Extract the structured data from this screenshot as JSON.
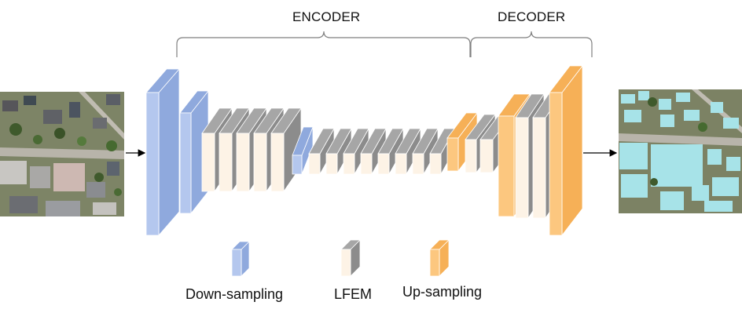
{
  "encoder_label": "ENCODER",
  "decoder_label": "DECODER",
  "legend": {
    "down": "Down-sampling",
    "lfem": "LFEM",
    "up": "Up-sampling"
  },
  "colors": {
    "down_front": "#b4c7ee",
    "down_side": "#8fa9dd",
    "lfem_front": "#fdf3e6",
    "lfem_side": "#8c8c8c",
    "lfem_top": "#a6a6a6",
    "up_front": "#fcc77f",
    "up_side": "#f6b057"
  },
  "images": {
    "input": "aerial-photo",
    "output": "segmented-building-map"
  }
}
